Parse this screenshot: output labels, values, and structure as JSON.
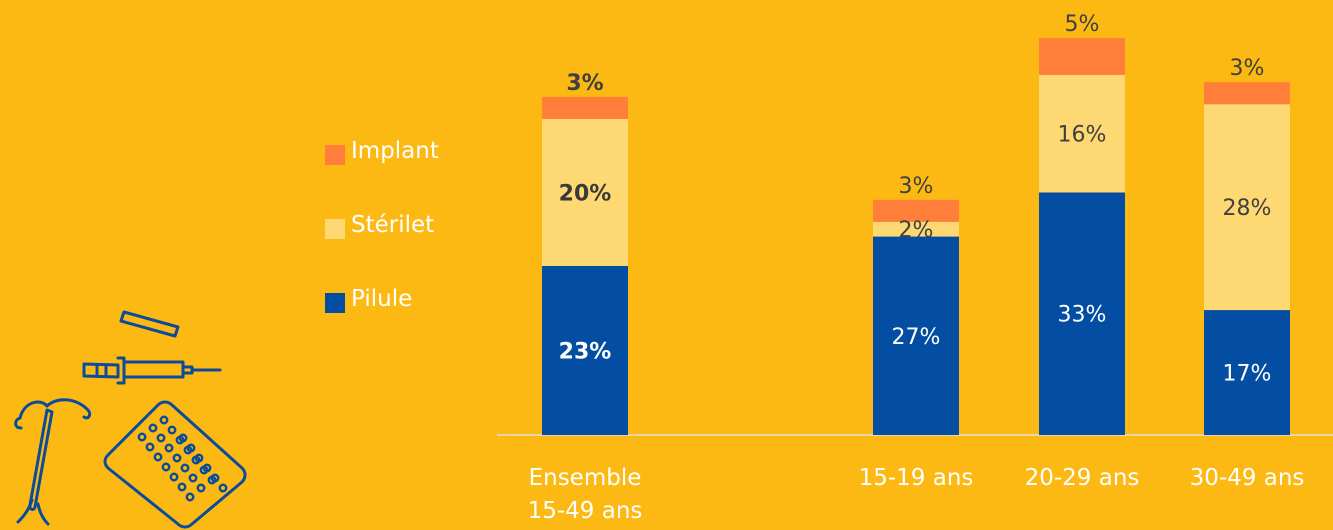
{
  "chart_data": {
    "type": "bar",
    "stacked": true,
    "categories": [
      [
        "Ensemble",
        "15-49 ans"
      ],
      [
        "15-19 ans"
      ],
      [
        "20-29 ans"
      ],
      [
        "30-49 ans"
      ]
    ],
    "series": [
      {
        "name": "Pilule",
        "color": "#034EA2",
        "values": [
          23,
          27,
          33,
          17
        ],
        "labels": [
          "23%",
          "27%",
          "33%",
          "17%"
        ]
      },
      {
        "name": "Stérilet",
        "color": "#FED872",
        "values": [
          20,
          2,
          16,
          28
        ],
        "labels": [
          "20%",
          "2%",
          "16%",
          "28%"
        ]
      },
      {
        "name": "Implant",
        "color": "#FF7F3A",
        "values": [
          3,
          3,
          5,
          3
        ],
        "labels": [
          "3%",
          "3%",
          "5%",
          "3%"
        ]
      }
    ],
    "legend_position": "left",
    "grid": false
  },
  "legend": {
    "items": [
      {
        "label": "Implant",
        "color": "#FF7F3A"
      },
      {
        "label": "Stérilet",
        "color": "#FED872"
      },
      {
        "label": "Pilule",
        "color": "#034EA2"
      }
    ]
  },
  "decoration": {
    "icons": [
      "syringe-icon",
      "implant-rod-icon",
      "iud-icon",
      "pill-pack-icon"
    ]
  }
}
